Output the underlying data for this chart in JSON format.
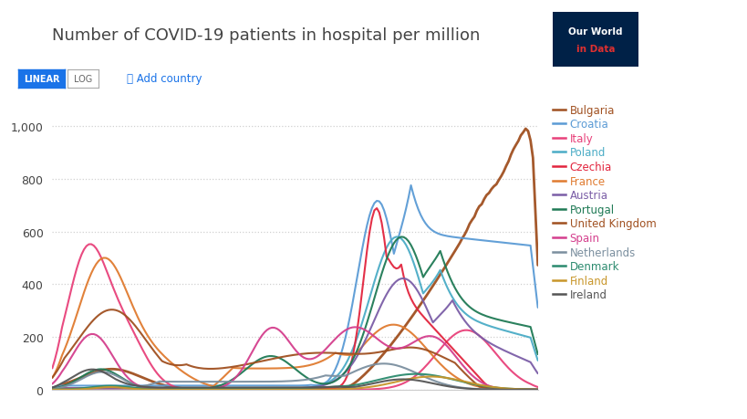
{
  "title": "Number of COVID-19 patients in hospital per million",
  "background_color": "#ffffff",
  "plot_bg_color": "#ffffff",
  "grid_color": "#d0d0d0",
  "ylim": [
    0,
    1100
  ],
  "yticks": [
    0,
    200,
    400,
    600,
    800,
    1000
  ],
  "ytick_labels": [
    "0",
    "200",
    "400",
    "600",
    "800",
    "1,000"
  ],
  "countries": [
    {
      "name": "Bulgaria",
      "color": "#a05020",
      "lw": 2.0
    },
    {
      "name": "Croatia",
      "color": "#5b9bd5",
      "lw": 1.5
    },
    {
      "name": "Italy",
      "color": "#e8417a",
      "lw": 1.5
    },
    {
      "name": "Poland",
      "color": "#4bacc6",
      "lw": 1.5
    },
    {
      "name": "Czechia",
      "color": "#e2253e",
      "lw": 1.5
    },
    {
      "name": "France",
      "color": "#e07b30",
      "lw": 1.5
    },
    {
      "name": "Austria",
      "color": "#7b5ea7",
      "lw": 1.5
    },
    {
      "name": "Portugal",
      "color": "#1f7a55",
      "lw": 1.5
    },
    {
      "name": "United Kingdom",
      "color": "#a05020",
      "lw": 1.5
    },
    {
      "name": "Spain",
      "color": "#d43f8d",
      "lw": 1.5
    },
    {
      "name": "Netherlands",
      "color": "#7b8f9f",
      "lw": 1.5
    },
    {
      "name": "Denmark",
      "color": "#2b8a6e",
      "lw": 1.5
    },
    {
      "name": "Finland",
      "color": "#c8962a",
      "lw": 1.5
    },
    {
      "name": "Ireland",
      "color": "#555555",
      "lw": 1.5
    }
  ]
}
